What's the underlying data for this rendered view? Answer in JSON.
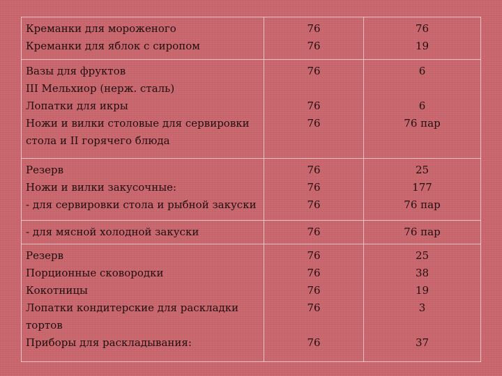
{
  "rows": [
    {
      "col1": [
        "Креманки для мороженого",
        "Креманки для яблок с сиропом"
      ],
      "col2": [
        "76",
        "76"
      ],
      "col3": [
        "76",
        "19"
      ]
    },
    {
      "col1": [
        "Вазы для фруктов",
        "III Мельхиор (нерж. сталь)",
        "Лопатки для икры",
        "Ножи и вилки столовые для сервировки",
        "стола и II горячего блюда"
      ],
      "col2": [
        "76",
        "",
        "76",
        "76",
        ""
      ],
      "col3": [
        "6",
        "",
        "6",
        "76 пар",
        ""
      ]
    },
    {
      "col1": [
        "Резерв",
        "Ножи и вилки закусочные:",
        "- для сервировки стола и рыбной закуски"
      ],
      "col2": [
        "76",
        "76",
        "76"
      ],
      "col3": [
        "25",
        "177",
        "76 пар"
      ]
    },
    {
      "col1": [
        "- для мясной холодной закуски"
      ],
      "col2": [
        "76"
      ],
      "col3": [
        "76 пар"
      ]
    },
    {
      "col1": [
        "Резерв",
        "Порционные сковородки",
        "Кокотницы",
        "Лопатки кондитерские для раскладки",
        "тортов",
        "Приборы для раскладывания:"
      ],
      "col2": [
        "76",
        "76",
        "76",
        "76",
        "",
        "76"
      ],
      "col3": [
        "25",
        "38",
        "19",
        "3",
        "",
        "37"
      ]
    }
  ]
}
